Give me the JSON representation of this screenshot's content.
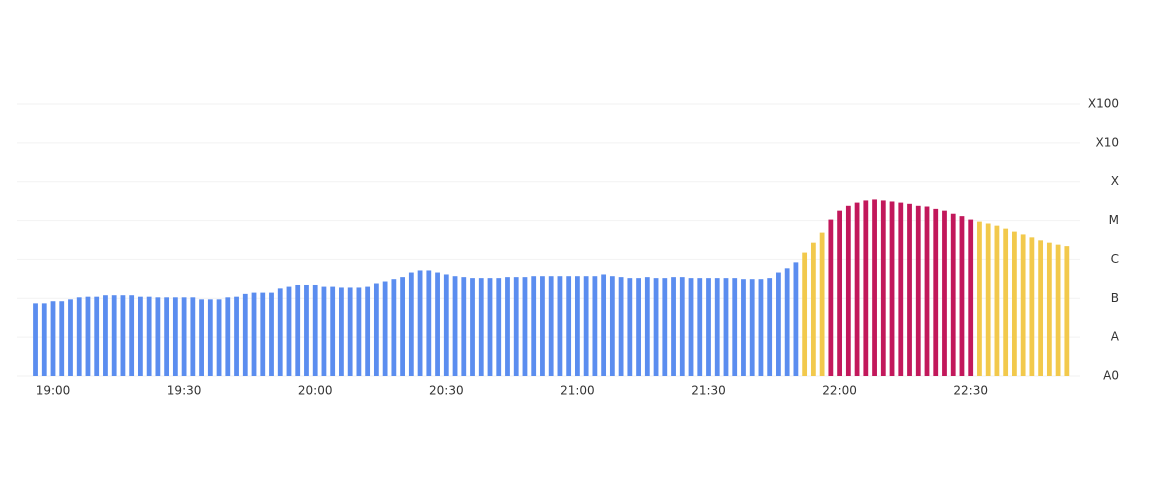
{
  "chart_data": {
    "type": "bar",
    "x": [
      "18:56",
      "18:58",
      "19:00",
      "19:02",
      "19:04",
      "19:06",
      "19:08",
      "19:10",
      "19:12",
      "19:14",
      "19:16",
      "19:18",
      "19:20",
      "19:22",
      "19:24",
      "19:26",
      "19:28",
      "19:30",
      "19:32",
      "19:34",
      "19:36",
      "19:38",
      "19:40",
      "19:42",
      "19:44",
      "19:46",
      "19:48",
      "19:50",
      "19:52",
      "19:54",
      "19:56",
      "19:58",
      "20:00",
      "20:02",
      "20:04",
      "20:06",
      "20:08",
      "20:10",
      "20:12",
      "20:14",
      "20:16",
      "20:18",
      "20:20",
      "20:22",
      "20:24",
      "20:26",
      "20:28",
      "20:30",
      "20:32",
      "20:34",
      "20:36",
      "20:38",
      "20:40",
      "20:42",
      "20:44",
      "20:46",
      "20:48",
      "20:50",
      "20:52",
      "20:54",
      "20:56",
      "20:58",
      "21:00",
      "21:02",
      "21:04",
      "21:06",
      "21:08",
      "21:10",
      "21:12",
      "21:14",
      "21:16",
      "21:18",
      "21:20",
      "21:22",
      "21:24",
      "21:26",
      "21:28",
      "21:30",
      "21:32",
      "21:34",
      "21:36",
      "21:38",
      "21:40",
      "21:42",
      "21:44",
      "21:46",
      "21:48",
      "21:50",
      "21:52",
      "21:54",
      "21:56",
      "21:58",
      "22:00",
      "22:02",
      "22:04",
      "22:06",
      "22:08",
      "22:10",
      "22:12",
      "22:14",
      "22:16",
      "22:18",
      "22:20",
      "22:22",
      "22:24",
      "22:26",
      "22:28",
      "22:30",
      "22:32",
      "22:34",
      "22:36",
      "22:38",
      "22:40",
      "22:42",
      "22:44",
      "22:46",
      "22:48",
      "22:50",
      "22:52"
    ],
    "values": [
      7.4e-08,
      7.4e-08,
      8.4e-08,
      8.4e-08,
      9.4e-08,
      1.06e-07,
      1.1e-07,
      1.1e-07,
      1.2e-07,
      1.2e-07,
      1.2e-07,
      1.2e-07,
      1.1e-07,
      1.1e-07,
      1.06e-07,
      1.06e-07,
      1.06e-07,
      1.06e-07,
      1.06e-07,
      9.4e-08,
      9.4e-08,
      9.4e-08,
      1.06e-07,
      1.1e-07,
      1.3e-07,
      1.4e-07,
      1.4e-07,
      1.4e-07,
      1.8e-07,
      2e-07,
      2.2e-07,
      2.2e-07,
      2.2e-07,
      2e-07,
      2e-07,
      1.9e-07,
      1.9e-07,
      1.9e-07,
      2e-07,
      2.4e-07,
      2.7e-07,
      3.1e-07,
      3.5e-07,
      4.6e-07,
      5.2e-07,
      5.2e-07,
      4.6e-07,
      4.1e-07,
      3.7e-07,
      3.5e-07,
      3.3e-07,
      3.3e-07,
      3.3e-07,
      3.3e-07,
      3.5e-07,
      3.5e-07,
      3.5e-07,
      3.7e-07,
      3.7e-07,
      3.7e-07,
      3.7e-07,
      3.7e-07,
      3.7e-07,
      3.7e-07,
      3.7e-07,
      4.1e-07,
      3.7e-07,
      3.5e-07,
      3.3e-07,
      3.3e-07,
      3.5e-07,
      3.3e-07,
      3.3e-07,
      3.5e-07,
      3.5e-07,
      3.3e-07,
      3.3e-07,
      3.3e-07,
      3.3e-07,
      3.3e-07,
      3.3e-07,
      3.1e-07,
      3.1e-07,
      3.1e-07,
      3.3e-07,
      4.6e-07,
      5.9e-07,
      8.4e-07,
      1.5e-06,
      2.7e-06,
      4.9e-06,
      1.06e-05,
      1.8e-05,
      2.4e-05,
      2.9e-05,
      3.3e-05,
      3.5e-05,
      3.3e-05,
      3.1e-05,
      2.9e-05,
      2.7e-05,
      2.4e-05,
      2.3e-05,
      2e-05,
      1.8e-05,
      1.5e-05,
      1.3e-05,
      1.06e-05,
      9.4e-06,
      8.4e-06,
      7.4e-06,
      6.2e-06,
      5.2e-06,
      4.4e-06,
      3.7e-06,
      3.1e-06,
      2.7e-06,
      2.4e-06,
      2.2e-06
    ],
    "color": "#5b8def",
    "thresholds": [
      {
        "value": 1e-06,
        "color": "#f2c94c"
      },
      {
        "value": 1e-05,
        "color": "#c2185b"
      }
    ],
    "xticks": [
      "19:00",
      "19:30",
      "20:00",
      "20:30",
      "21:00",
      "21:30",
      "22:00",
      "22:30"
    ],
    "log_scale": true,
    "ylim": [
      1e-09,
      0.01
    ],
    "yticks": [
      {
        "value": 1e-09,
        "label": "A0"
      },
      {
        "value": 1e-08,
        "label": "A"
      },
      {
        "value": 1e-07,
        "label": "B"
      },
      {
        "value": 1e-06,
        "label": "C"
      },
      {
        "value": 1e-05,
        "label": "M"
      },
      {
        "value": 0.0001,
        "label": "X"
      },
      {
        "value": 0.001,
        "label": "X10"
      },
      {
        "value": 0.01,
        "label": "X100"
      }
    ],
    "grid": true
  }
}
